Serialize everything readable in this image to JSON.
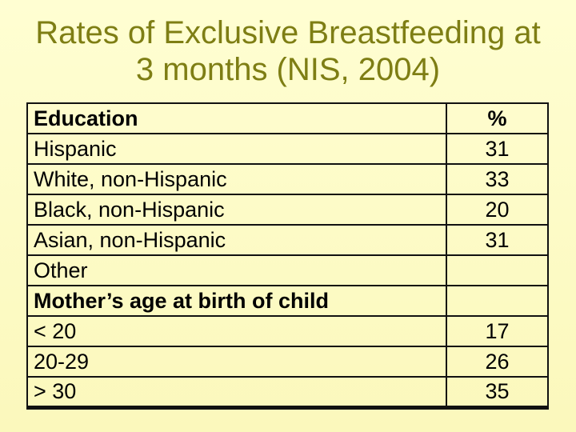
{
  "slide": {
    "title_line1": "Rates of Exclusive Breastfeeding at",
    "title_line2": "3 months (NIS, 2004)"
  },
  "table": {
    "header": {
      "label": "Education",
      "value": "%"
    },
    "rows": [
      {
        "label": "Hispanic",
        "value": "31",
        "bold": false
      },
      {
        "label": "White, non-Hispanic",
        "value": "33",
        "bold": false
      },
      {
        "label": "Black, non-Hispanic",
        "value": "20",
        "bold": false
      },
      {
        "label": "Asian, non-Hispanic",
        "value": "31",
        "bold": false
      },
      {
        "label": "Other",
        "value": "",
        "bold": false
      },
      {
        "label": "Mother’s age at birth of child",
        "value": "",
        "bold": true
      },
      {
        "label": "< 20",
        "value": "17",
        "bold": false
      },
      {
        "label": "20-29",
        "value": "26",
        "bold": false
      },
      {
        "label": "> 30",
        "value": "35",
        "bold": false
      }
    ]
  },
  "colors": {
    "bg_top": "#FFFED2",
    "bg_bottom": "#FBF8BC",
    "title_color": "#7E7E14",
    "border_color": "#111111",
    "text_color": "#000000"
  }
}
